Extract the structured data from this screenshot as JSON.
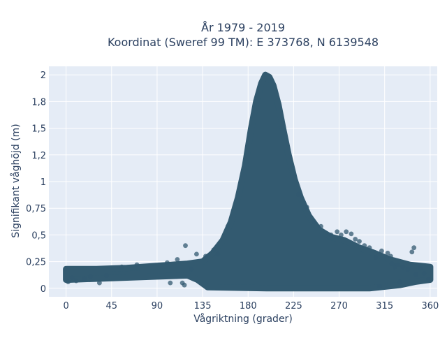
{
  "chart_data": {
    "type": "scatter",
    "title_line1": "År 1979 - 2019",
    "title_line2": "Koordinat (Sweref 99 TM): E 373768, N 6139548",
    "xlabel": "Vågriktning (grader)",
    "ylabel": "Signifikant våghöjd (m)",
    "xlim": [
      -17,
      367
    ],
    "ylim": [
      -0.08,
      2.08
    ],
    "grid": true,
    "x_ticks": [
      {
        "value": 0,
        "label": "0"
      },
      {
        "value": 45,
        "label": "45"
      },
      {
        "value": 90,
        "label": "90"
      },
      {
        "value": 135,
        "label": "135"
      },
      {
        "value": 180,
        "label": "180"
      },
      {
        "value": 225,
        "label": "225"
      },
      {
        "value": 270,
        "label": "270"
      },
      {
        "value": 315,
        "label": "315"
      },
      {
        "value": 360,
        "label": "360"
      }
    ],
    "y_ticks": [
      {
        "value": 0,
        "label": "0"
      },
      {
        "value": 0.25,
        "label": "0,25"
      },
      {
        "value": 0.5,
        "label": "0,5"
      },
      {
        "value": 0.75,
        "label": "0,75"
      },
      {
        "value": 1,
        "label": "1"
      },
      {
        "value": 1.25,
        "label": "1,2"
      },
      {
        "value": 1.5,
        "label": "1,5"
      },
      {
        "value": 1.75,
        "label": "1,8"
      },
      {
        "value": 2,
        "label": "2"
      }
    ],
    "series": [
      {
        "color": "#335a70",
        "envelope_upper": [
          {
            "x": 0,
            "y": 0.18
          },
          {
            "x": 30,
            "y": 0.18
          },
          {
            "x": 60,
            "y": 0.19
          },
          {
            "x": 90,
            "y": 0.21
          },
          {
            "x": 120,
            "y": 0.23
          },
          {
            "x": 135,
            "y": 0.25
          },
          {
            "x": 145,
            "y": 0.33
          },
          {
            "x": 155,
            "y": 0.45
          },
          {
            "x": 163,
            "y": 0.62
          },
          {
            "x": 170,
            "y": 0.85
          },
          {
            "x": 177,
            "y": 1.15
          },
          {
            "x": 183,
            "y": 1.5
          },
          {
            "x": 188,
            "y": 1.75
          },
          {
            "x": 193,
            "y": 1.92
          },
          {
            "x": 197,
            "y": 2.0
          },
          {
            "x": 201,
            "y": 1.98
          },
          {
            "x": 205,
            "y": 1.9
          },
          {
            "x": 210,
            "y": 1.72
          },
          {
            "x": 215,
            "y": 1.48
          },
          {
            "x": 220,
            "y": 1.25
          },
          {
            "x": 226,
            "y": 1.02
          },
          {
            "x": 232,
            "y": 0.85
          },
          {
            "x": 240,
            "y": 0.68
          },
          {
            "x": 250,
            "y": 0.55
          },
          {
            "x": 262,
            "y": 0.48
          },
          {
            "x": 275,
            "y": 0.45
          },
          {
            "x": 290,
            "y": 0.38
          },
          {
            "x": 305,
            "y": 0.33
          },
          {
            "x": 320,
            "y": 0.27
          },
          {
            "x": 340,
            "y": 0.22
          },
          {
            "x": 360,
            "y": 0.2
          }
        ],
        "envelope_lower": [
          {
            "x": 0,
            "y": 0.08
          },
          {
            "x": 60,
            "y": 0.1
          },
          {
            "x": 120,
            "y": 0.12
          },
          {
            "x": 130,
            "y": 0.08
          },
          {
            "x": 140,
            "y": 0.01
          },
          {
            "x": 200,
            "y": 0.0
          },
          {
            "x": 300,
            "y": 0.0
          },
          {
            "x": 330,
            "y": 0.03
          },
          {
            "x": 345,
            "y": 0.06
          },
          {
            "x": 360,
            "y": 0.08
          }
        ],
        "points": [
          {
            "x": 2,
            "y": 0.06
          },
          {
            "x": 6,
            "y": 0.1
          },
          {
            "x": 10,
            "y": 0.07
          },
          {
            "x": 18,
            "y": 0.09
          },
          {
            "x": 24,
            "y": 0.11
          },
          {
            "x": 33,
            "y": 0.05
          },
          {
            "x": 40,
            "y": 0.12
          },
          {
            "x": 55,
            "y": 0.2
          },
          {
            "x": 70,
            "y": 0.22
          },
          {
            "x": 100,
            "y": 0.24
          },
          {
            "x": 103,
            "y": 0.05
          },
          {
            "x": 110,
            "y": 0.27
          },
          {
            "x": 115,
            "y": 0.05
          },
          {
            "x": 117,
            "y": 0.03
          },
          {
            "x": 118,
            "y": 0.4
          },
          {
            "x": 124,
            "y": 0.18
          },
          {
            "x": 129,
            "y": 0.32
          },
          {
            "x": 138,
            "y": 0.3
          },
          {
            "x": 146,
            "y": 0.36
          },
          {
            "x": 150,
            "y": 0.32
          },
          {
            "x": 160,
            "y": 0.58
          },
          {
            "x": 230,
            "y": 0.88
          },
          {
            "x": 238,
            "y": 0.76
          },
          {
            "x": 245,
            "y": 0.62
          },
          {
            "x": 252,
            "y": 0.58
          },
          {
            "x": 262,
            "y": 0.5
          },
          {
            "x": 268,
            "y": 0.53
          },
          {
            "x": 272,
            "y": 0.5
          },
          {
            "x": 277,
            "y": 0.53
          },
          {
            "x": 282,
            "y": 0.51
          },
          {
            "x": 286,
            "y": 0.46
          },
          {
            "x": 290,
            "y": 0.44
          },
          {
            "x": 295,
            "y": 0.4
          },
          {
            "x": 300,
            "y": 0.38
          },
          {
            "x": 306,
            "y": 0.29
          },
          {
            "x": 312,
            "y": 0.35
          },
          {
            "x": 318,
            "y": 0.33
          },
          {
            "x": 321,
            "y": 0.3
          },
          {
            "x": 325,
            "y": 0.2
          },
          {
            "x": 328,
            "y": 0.22
          },
          {
            "x": 333,
            "y": 0.2
          },
          {
            "x": 338,
            "y": 0.18
          },
          {
            "x": 342,
            "y": 0.34
          },
          {
            "x": 344,
            "y": 0.38
          },
          {
            "x": 346,
            "y": 0.13
          },
          {
            "x": 350,
            "y": 0.19
          },
          {
            "x": 354,
            "y": 0.14
          },
          {
            "x": 358,
            "y": 0.08
          },
          {
            "x": 322,
            "y": 0.23
          },
          {
            "x": 310,
            "y": 0.02
          },
          {
            "x": 330,
            "y": 0.06
          }
        ]
      }
    ]
  }
}
